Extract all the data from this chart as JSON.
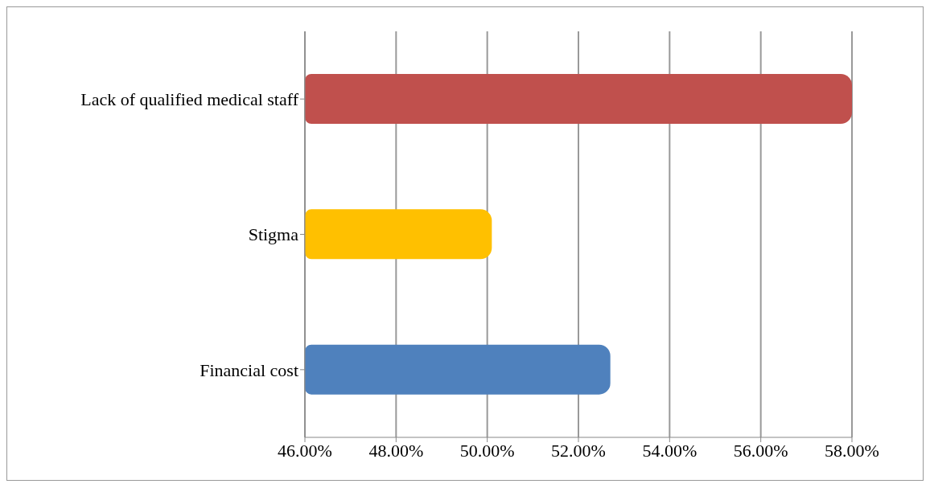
{
  "chart_data": {
    "type": "bar",
    "orientation": "horizontal",
    "categories": [
      "Lack of qualified medical staff",
      "Stigma",
      "Financial cost"
    ],
    "values": [
      58.0,
      50.1,
      52.7
    ],
    "colors": [
      "#c0504d",
      "#ffc000",
      "#4f81bd"
    ],
    "xlim": [
      46,
      58
    ],
    "xticks": [
      {
        "value": 46,
        "label": "46.00%"
      },
      {
        "value": 48,
        "label": "48.00%"
      },
      {
        "value": 50,
        "label": "50.00%"
      },
      {
        "value": 52,
        "label": "52.00%"
      },
      {
        "value": 54,
        "label": "54.00%"
      },
      {
        "value": 56,
        "label": "56.00%"
      },
      {
        "value": 58,
        "label": "58.00%"
      }
    ],
    "grid": "x",
    "legend": false
  }
}
